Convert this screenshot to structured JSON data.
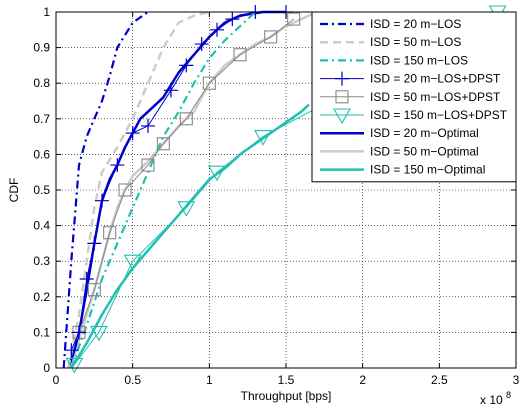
{
  "chart_data": {
    "type": "line",
    "xlabel": "Throughput [bps]",
    "ylabel": "CDF",
    "x_multiplier": "x 10",
    "x_multiplier_exp": "8",
    "xlim": [
      0,
      3
    ],
    "ylim": [
      0,
      1
    ],
    "xticks": [
      "0",
      "0.5",
      "1",
      "1.5",
      "2",
      "2.5",
      "3"
    ],
    "yticks": [
      "0",
      "0.1",
      "0.2",
      "0.3",
      "0.4",
      "0.5",
      "0.6",
      "0.7",
      "0.8",
      "0.9",
      "1"
    ],
    "grid": true,
    "legend_position": "top-right",
    "series": [
      {
        "name": "ISD = 20 m−LOS",
        "color": "#0000cc",
        "dash": "dashdot",
        "marker": "none",
        "width": 2.2,
        "x": [
          0.05,
          0.1,
          0.15,
          0.2,
          0.25,
          0.3,
          0.35,
          0.4,
          0.5,
          0.6
        ],
        "y": [
          0.0,
          0.3,
          0.57,
          0.65,
          0.7,
          0.75,
          0.82,
          0.9,
          0.97,
          1.0
        ]
      },
      {
        "name": "ISD = 50 m−LOS",
        "color": "#cccccc",
        "dash": "dash",
        "marker": "none",
        "width": 2.5,
        "x": [
          0.08,
          0.15,
          0.2,
          0.25,
          0.3,
          0.4,
          0.5,
          0.6,
          0.7,
          0.8,
          0.9,
          1.0
        ],
        "y": [
          0.0,
          0.15,
          0.3,
          0.45,
          0.55,
          0.62,
          0.7,
          0.8,
          0.9,
          0.97,
          0.99,
          1.0
        ]
      },
      {
        "name": "ISD = 150 m−LOS",
        "color": "#20c0b0",
        "dash": "dashdot",
        "marker": "none",
        "width": 2.2,
        "x": [
          0.1,
          0.2,
          0.3,
          0.4,
          0.5,
          0.6,
          0.7,
          0.8,
          0.9,
          1.0,
          1.1,
          1.2,
          1.3
        ],
        "y": [
          0.0,
          0.12,
          0.25,
          0.35,
          0.45,
          0.55,
          0.65,
          0.72,
          0.8,
          0.87,
          0.92,
          0.96,
          1.0
        ]
      },
      {
        "name": "ISD = 20 m−LOS+DPST",
        "color": "#0000cc",
        "dash": "solid",
        "marker": "plus",
        "width": 1.0,
        "marker_x": [
          0.1,
          0.15,
          0.2,
          0.25,
          0.3,
          0.4,
          0.5,
          0.6,
          0.75,
          0.85,
          0.95,
          1.05,
          1.15,
          1.3,
          1.5
        ],
        "marker_y": [
          0.05,
          0.1,
          0.25,
          0.35,
          0.47,
          0.57,
          0.66,
          0.68,
          0.78,
          0.85,
          0.91,
          0.95,
          0.98,
          1.0,
          1.0
        ]
      },
      {
        "name": "ISD = 50 m−LOS+DPST",
        "color": "#888888",
        "dash": "solid",
        "marker": "square",
        "width": 1.0,
        "marker_x": [
          0.15,
          0.25,
          0.35,
          0.45,
          0.6,
          0.7,
          0.85,
          1.0,
          1.2,
          1.4,
          1.55
        ],
        "marker_y": [
          0.1,
          0.22,
          0.38,
          0.5,
          0.57,
          0.63,
          0.7,
          0.8,
          0.88,
          0.93,
          0.98
        ]
      },
      {
        "name": "ISD = 150 m−LOS+DPST",
        "color": "#20c0b0",
        "dash": "solid",
        "marker": "triangle",
        "width": 1.0,
        "marker_x": [
          0.12,
          0.28,
          0.5,
          0.85,
          1.05,
          1.35,
          2.88
        ],
        "marker_y": [
          0.01,
          0.1,
          0.3,
          0.45,
          0.55,
          0.65,
          1.0
        ]
      },
      {
        "name": "ISD = 20 m−Optimal",
        "color": "#0000cc",
        "dash": "solid",
        "marker": "none",
        "width": 2.5,
        "x": [
          0.08,
          0.12,
          0.15,
          0.2,
          0.25,
          0.3,
          0.35,
          0.4,
          0.45,
          0.5,
          0.55,
          0.6,
          0.7,
          0.8,
          0.9,
          1.0,
          1.1,
          1.2,
          1.35,
          1.5
        ],
        "y": [
          0.0,
          0.05,
          0.1,
          0.22,
          0.35,
          0.47,
          0.53,
          0.57,
          0.62,
          0.66,
          0.7,
          0.72,
          0.76,
          0.83,
          0.88,
          0.93,
          0.97,
          0.99,
          1.0,
          1.0
        ]
      },
      {
        "name": "ISD = 50 m−Optimal",
        "color": "#cccccc",
        "dash": "solid",
        "marker": "none",
        "width": 2.5,
        "x": [
          0.1,
          0.15,
          0.2,
          0.25,
          0.3,
          0.35,
          0.4,
          0.45,
          0.5,
          0.6,
          0.7,
          0.8,
          0.9,
          1.0,
          1.1,
          1.2,
          1.3,
          1.4,
          1.5,
          1.6,
          1.7
        ],
        "y": [
          0.0,
          0.08,
          0.15,
          0.22,
          0.3,
          0.38,
          0.45,
          0.5,
          0.54,
          0.58,
          0.63,
          0.68,
          0.72,
          0.8,
          0.85,
          0.88,
          0.91,
          0.93,
          0.96,
          0.98,
          1.0
        ]
      },
      {
        "name": "ISD = 150 m−Optimal",
        "color": "#20c0b0",
        "dash": "solid",
        "marker": "none",
        "width": 2.5,
        "x": [
          0.1,
          0.2,
          0.3,
          0.4,
          0.5,
          0.6,
          0.7,
          0.8,
          0.9,
          1.0,
          1.1,
          1.2,
          1.3,
          1.4,
          1.5,
          1.6,
          1.65
        ],
        "y": [
          0.0,
          0.07,
          0.15,
          0.22,
          0.28,
          0.33,
          0.38,
          0.43,
          0.48,
          0.53,
          0.56,
          0.6,
          0.63,
          0.66,
          0.69,
          0.72,
          0.74
        ]
      }
    ]
  }
}
